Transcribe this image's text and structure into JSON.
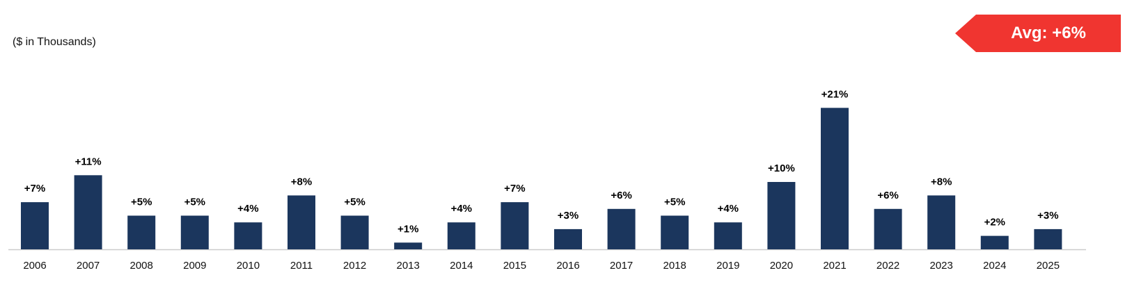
{
  "units_label": "($ in Thousands)",
  "average_badge": {
    "text": "Avg: +6%",
    "color": "#f03530"
  },
  "chart_data": {
    "type": "bar",
    "categories": [
      "2006",
      "2007",
      "2008",
      "2009",
      "2010",
      "2011",
      "2012",
      "2013",
      "2014",
      "2015",
      "2016",
      "2017",
      "2018",
      "2019",
      "2020",
      "2021",
      "2022",
      "2023",
      "2024",
      "2025"
    ],
    "values": [
      7,
      11,
      5,
      5,
      4,
      8,
      5,
      1,
      4,
      7,
      3,
      6,
      5,
      4,
      10,
      21,
      6,
      8,
      2,
      3
    ],
    "data_labels": [
      "+7%",
      "+11%",
      "+5%",
      "+5%",
      "+4%",
      "+8%",
      "+5%",
      "+1%",
      "+4%",
      "+7%",
      "+3%",
      "+6%",
      "+5%",
      "+4%",
      "+10%",
      "+21%",
      "+6%",
      "+8%",
      "+2%",
      "+3%"
    ],
    "bar_color": "#1b365d",
    "axis_color": "#cccccc",
    "grid": false,
    "legend": "none"
  }
}
